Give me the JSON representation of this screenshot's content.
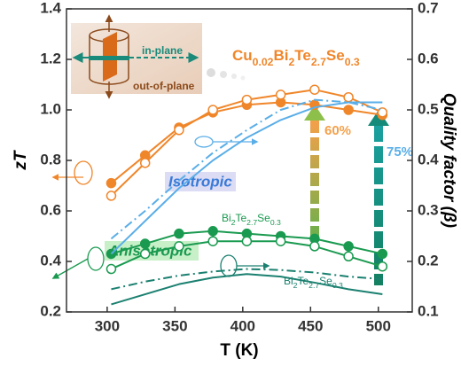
{
  "chart_data": {
    "type": "line",
    "xlabel": "T (K)",
    "ylabel": "zT",
    "y2label": "Quality factor (β)",
    "xlim": [
      270,
      525
    ],
    "xticks": [
      300,
      350,
      400,
      450,
      500
    ],
    "ylim": [
      0.2,
      1.4
    ],
    "yticks": [
      0.2,
      0.4,
      0.6,
      0.8,
      {
        "value": 1,
        "label": "1.0"
      },
      1.2,
      1.4
    ],
    "y2lim": [
      0.1,
      0.7
    ],
    "y2ticks": [
      0.1,
      0.2,
      0.3,
      0.4,
      0.5,
      0.6,
      0.7
    ],
    "x": [
      303,
      328,
      353,
      378,
      403,
      428,
      453,
      478,
      503
    ],
    "series": [
      {
        "color": "#f0862a",
        "marker": "filled",
        "dash": "solid",
        "values": [
          0.71,
          0.82,
          0.93,
          0.99,
          1.02,
          1.03,
          1.02,
          1.0,
          0.98
        ]
      },
      {
        "color": "#f0862a",
        "marker": "open",
        "dash": "solid",
        "values": [
          0.66,
          0.79,
          0.92,
          1.0,
          1.04,
          1.06,
          1.08,
          1.05,
          0.99
        ]
      },
      {
        "color": "#1a9a50",
        "marker": "filled",
        "dash": "solid",
        "values": [
          0.43,
          0.47,
          0.51,
          0.52,
          0.51,
          0.5,
          0.49,
          0.46,
          0.43
        ]
      },
      {
        "color": "#1a9a50",
        "marker": "open",
        "dash": "solid",
        "values": [
          0.37,
          0.43,
          0.46,
          0.48,
          0.48,
          0.48,
          0.46,
          0.42,
          0.38
        ]
      },
      {
        "color": "#5aaee8",
        "marker": "none",
        "dash": "solid",
        "axis": "y2",
        "values": [
          0.215,
          0.28,
          0.345,
          0.4,
          0.445,
          0.48,
          0.505,
          0.515,
          0.515
        ]
      },
      {
        "color": "#5aaee8",
        "marker": "none",
        "dash": "dashdot",
        "axis": "y2",
        "values": [
          0.245,
          0.3,
          0.36,
          0.415,
          0.46,
          0.5,
          0.52,
          0.515,
          0.5
        ]
      },
      {
        "color": "#1b8070",
        "marker": "none",
        "dash": "dashdot",
        "axis": "y2",
        "values": [
          0.145,
          0.16,
          0.172,
          0.18,
          0.185,
          0.183,
          0.178,
          0.17,
          0.165
        ]
      },
      {
        "color": "#1b8070",
        "marker": "none",
        "dash": "solid",
        "axis": "y2",
        "values": [
          0.115,
          0.135,
          0.155,
          0.168,
          0.175,
          0.17,
          0.158,
          0.145,
          0.135
        ]
      }
    ],
    "annotations": {
      "formula": [
        "Cu",
        "0.02",
        "Bi",
        "2",
        "Te",
        "2.7",
        "Se",
        "0.3"
      ],
      "formula_zt": [
        "Bi",
        "2",
        "Te",
        "2.7",
        "Se",
        "0.3"
      ],
      "formula_beta": [
        "Bi",
        "2",
        "Te",
        "2.7",
        "Se",
        "0.3"
      ],
      "isotropic": "Isotropic",
      "anisotropic": "Anisotropic",
      "gain1": "60%",
      "gain2": "75%",
      "in_plane": "in-plane",
      "out_of_plane": "out-of-plane"
    }
  }
}
